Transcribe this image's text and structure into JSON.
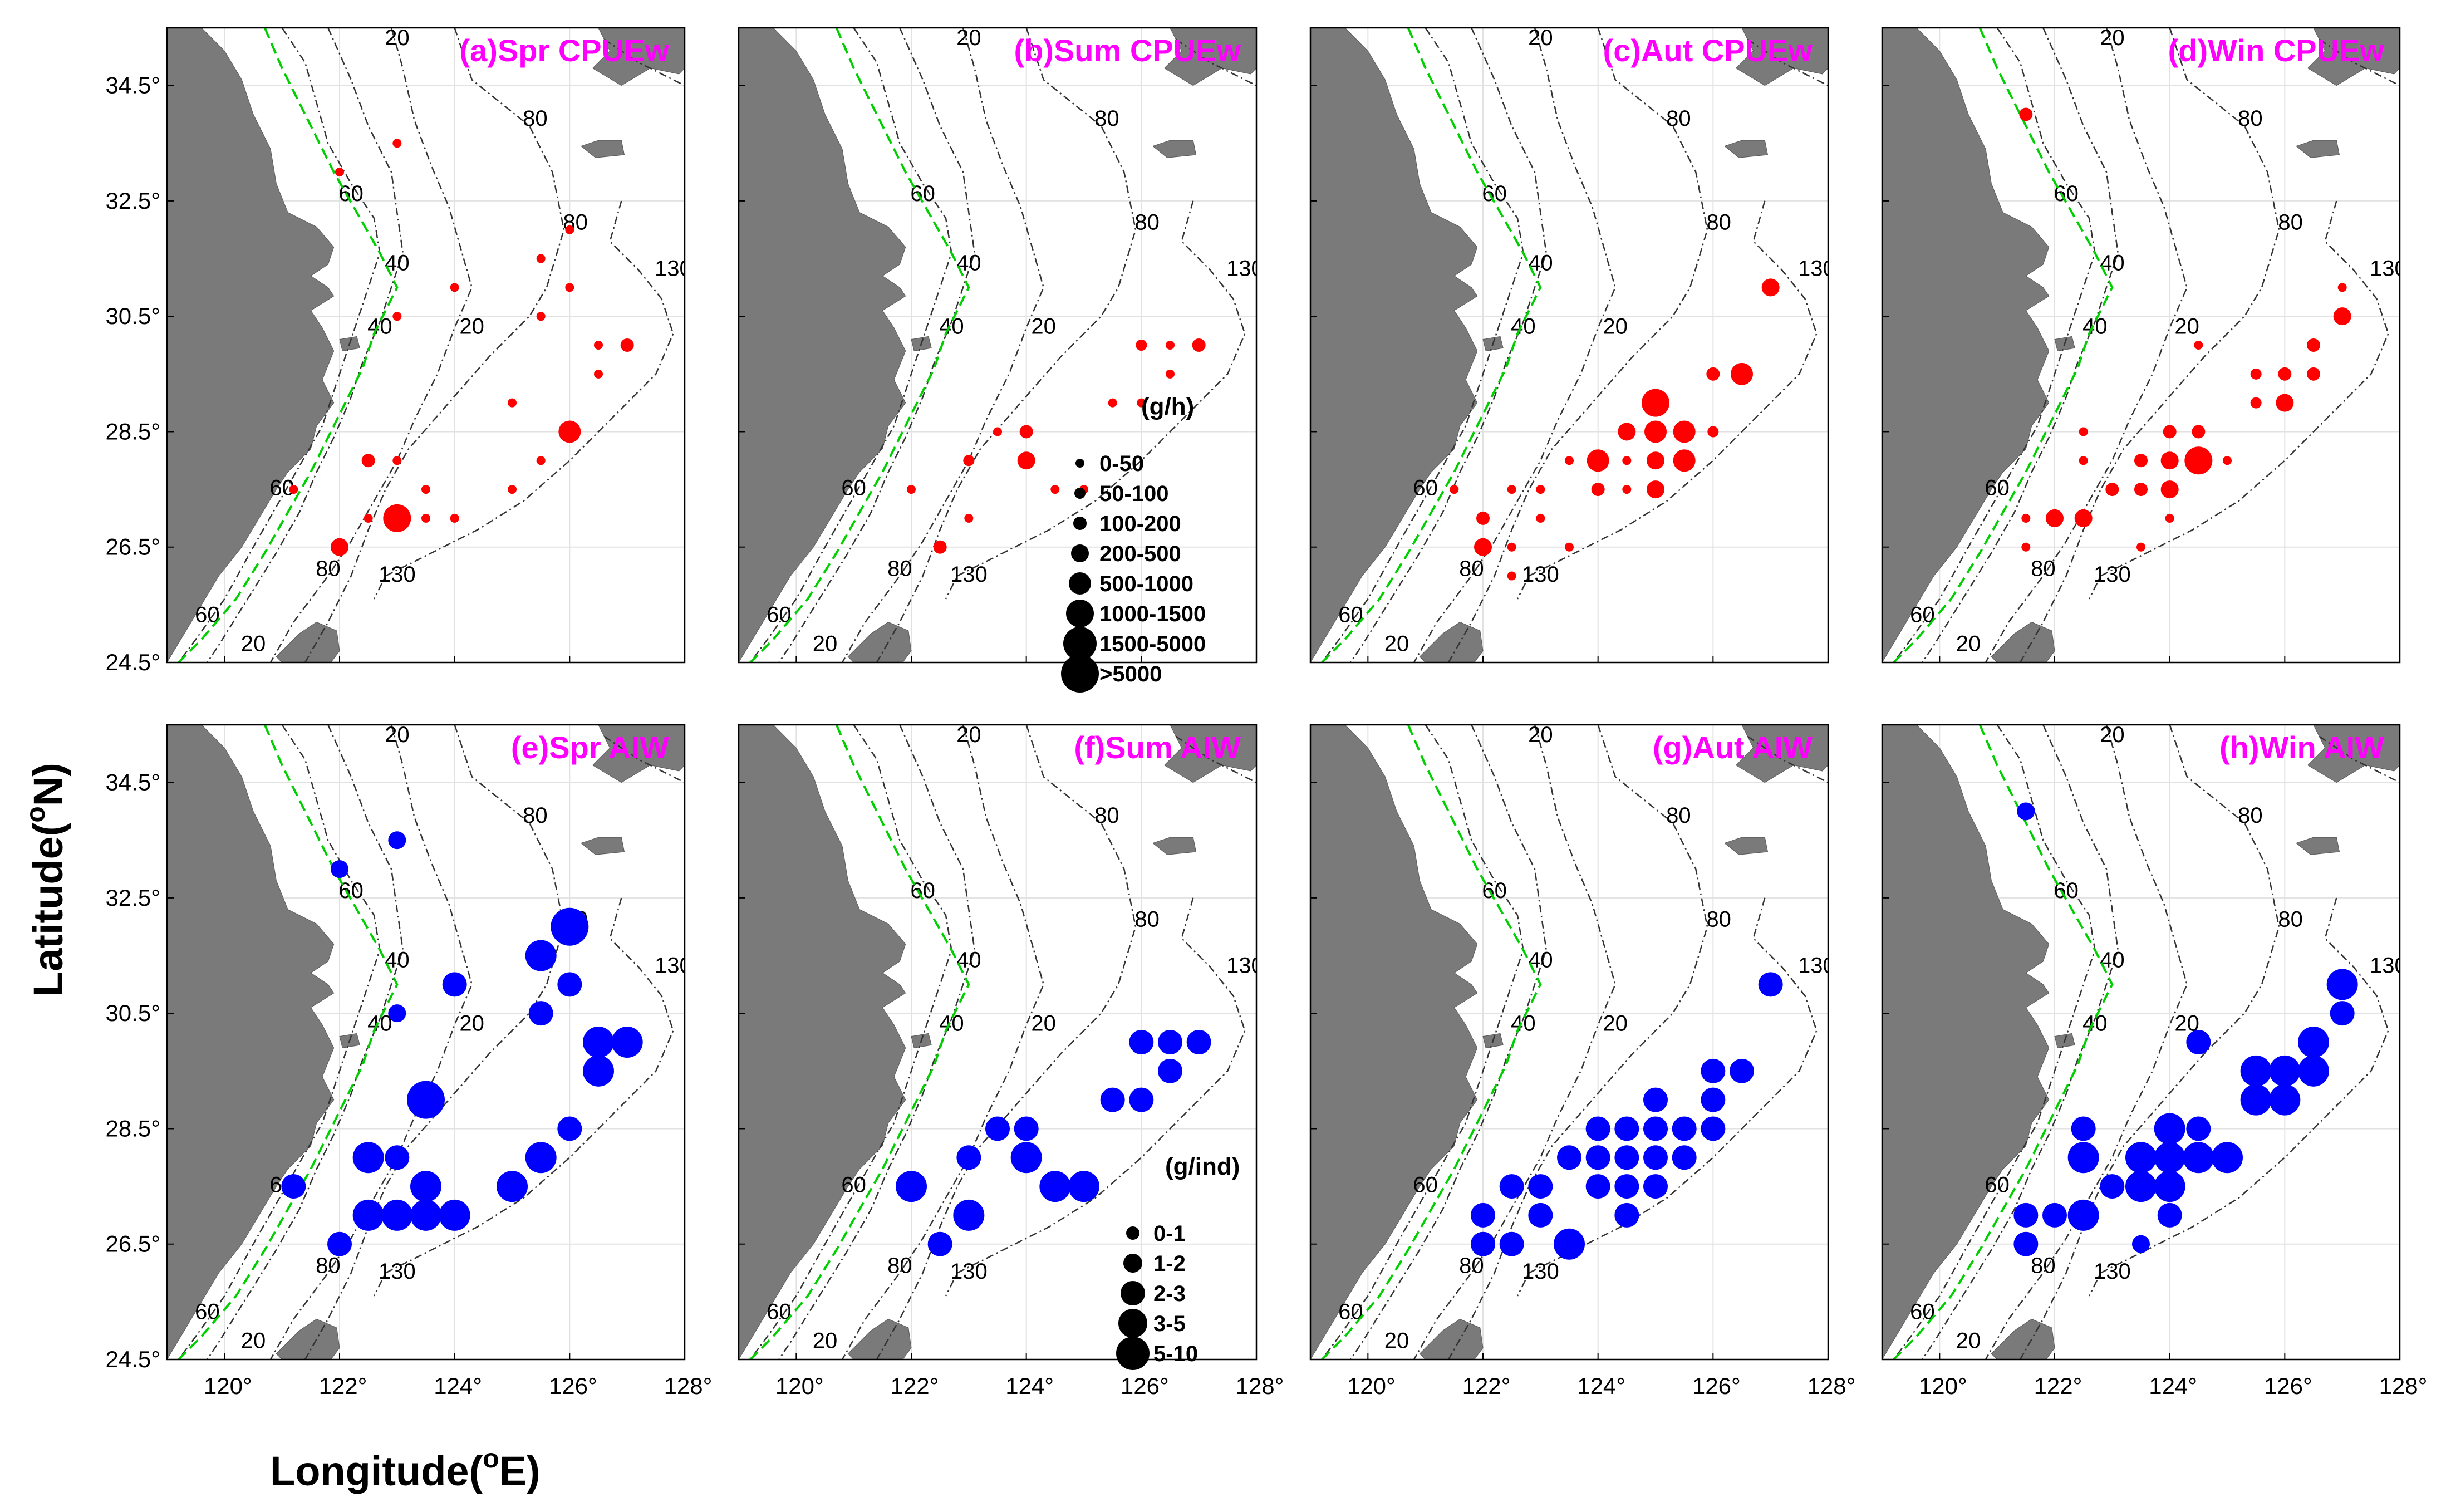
{
  "axes": {
    "xlabel": "Longitude(",
    "xlabel_sup": "o",
    "xlabel_end": "E)",
    "ylabel": "Latitude(",
    "ylabel_sup": "o",
    "ylabel_end": "N)",
    "x_ticks": [
      "120°",
      "122°",
      "124°",
      "126°",
      "128°"
    ],
    "y_ticks": [
      "34.5°",
      "32.5°",
      "30.5°",
      "28.5°",
      "26.5°",
      "24.5°"
    ],
    "x_tick_values": [
      120,
      122,
      124,
      126,
      128
    ],
    "y_tick_values": [
      34.5,
      32.5,
      30.5,
      28.5,
      26.5,
      24.5
    ],
    "xlim": [
      119,
      128
    ],
    "ylim": [
      24.5,
      35.5
    ]
  },
  "colors": {
    "cpue": "#ff0000",
    "aiw": "#0000ff",
    "land": "#7a7a7a",
    "title": "#ff00ff",
    "boundary": "#00d000"
  },
  "depth_labels": [
    "20",
    "40",
    "60",
    "80",
    "130"
  ],
  "legends": {
    "cpue": {
      "title": "(g/h)",
      "items": [
        "0-50",
        "50-100",
        "100-200",
        "200-500",
        "500-1000",
        "1000-1500",
        "1500-5000",
        ">5000"
      ]
    },
    "aiw": {
      "title": "(g/ind)",
      "items": [
        "0-1",
        "1-2",
        "2-3",
        "3-5",
        "5-10"
      ]
    }
  },
  "chart_data": [
    {
      "type": "scatter",
      "title": "(a)Spr CPUEw",
      "series": "CPUEw (g/h)",
      "points": [
        [
          122,
          33
        ],
        [
          123,
          33.5
        ],
        [
          126,
          32
        ],
        [
          125.5,
          31.5
        ],
        [
          124,
          31
        ],
        [
          126,
          31
        ],
        [
          123,
          30.5
        ],
        [
          125.5,
          30.5
        ],
        [
          126.5,
          30
        ],
        [
          127,
          30
        ],
        [
          126.5,
          29.5
        ],
        [
          125,
          29
        ],
        [
          126,
          28.5
        ],
        [
          122.5,
          28
        ],
        [
          123,
          28
        ],
        [
          125.5,
          28
        ],
        [
          123.5,
          27.5
        ],
        [
          125,
          27.5
        ],
        [
          121.2,
          27.5
        ],
        [
          122.5,
          27
        ],
        [
          123,
          27
        ],
        [
          123.5,
          27
        ],
        [
          124,
          27
        ],
        [
          122,
          26.5
        ]
      ],
      "classes": [
        1,
        1,
        1,
        1,
        1,
        1,
        1,
        1,
        1,
        3,
        1,
        1,
        5,
        3,
        1,
        1,
        1,
        1,
        1,
        1,
        6,
        1,
        1,
        4
      ]
    },
    {
      "type": "scatter",
      "title": "(b)Sum CPUEw",
      "series": "CPUEw (g/h)",
      "points": [
        [
          126,
          30
        ],
        [
          126.5,
          30
        ],
        [
          127,
          30
        ],
        [
          126.5,
          29.5
        ],
        [
          125.5,
          29
        ],
        [
          126,
          29
        ],
        [
          123.5,
          28.5
        ],
        [
          124,
          28.5
        ],
        [
          123,
          28
        ],
        [
          124,
          28
        ],
        [
          122,
          27.5
        ],
        [
          124.5,
          27.5
        ],
        [
          125,
          27.5
        ],
        [
          123,
          27
        ],
        [
          122.5,
          26.5
        ]
      ],
      "classes": [
        2,
        1,
        3,
        1,
        1,
        1,
        1,
        3,
        2,
        4,
        1,
        1,
        1,
        1,
        3
      ]
    },
    {
      "type": "scatter",
      "title": "(c)Aut CPUEw",
      "series": "CPUEw (g/h)",
      "points": [
        [
          127,
          31
        ],
        [
          126,
          29.5
        ],
        [
          126.5,
          29.5
        ],
        [
          125,
          29
        ],
        [
          124.5,
          28.5
        ],
        [
          125,
          28.5
        ],
        [
          125.5,
          28.5
        ],
        [
          126,
          28.5
        ],
        [
          123.5,
          28
        ],
        [
          124,
          28
        ],
        [
          124.5,
          28
        ],
        [
          125,
          28
        ],
        [
          125.5,
          28
        ],
        [
          122.5,
          27.5
        ],
        [
          123,
          27.5
        ],
        [
          124,
          27.5
        ],
        [
          124.5,
          27.5
        ],
        [
          125,
          27.5
        ],
        [
          122,
          27
        ],
        [
          123,
          27
        ],
        [
          122,
          26.5
        ],
        [
          122.5,
          26.5
        ],
        [
          123.5,
          26.5
        ],
        [
          122.5,
          26
        ],
        [
          121.5,
          27.5
        ]
      ],
      "classes": [
        4,
        3,
        5,
        6,
        4,
        5,
        5,
        2,
        1,
        5,
        1,
        4,
        5,
        1,
        1,
        3,
        1,
        4,
        3,
        1,
        4,
        1,
        1,
        1,
        1
      ]
    },
    {
      "type": "scatter",
      "title": "(d)Win CPUEw",
      "series": "CPUEw (g/h)",
      "points": [
        [
          121.5,
          34
        ],
        [
          127,
          31
        ],
        [
          127,
          30.5
        ],
        [
          124.5,
          30
        ],
        [
          126.5,
          30
        ],
        [
          125.5,
          29.5
        ],
        [
          126,
          29.5
        ],
        [
          126.5,
          29.5
        ],
        [
          125.5,
          29
        ],
        [
          126,
          29
        ],
        [
          122.5,
          28.5
        ],
        [
          124,
          28.5
        ],
        [
          124.5,
          28.5
        ],
        [
          122.5,
          28
        ],
        [
          123.5,
          28
        ],
        [
          124,
          28
        ],
        [
          124.5,
          28
        ],
        [
          125,
          28
        ],
        [
          123,
          27.5
        ],
        [
          123.5,
          27.5
        ],
        [
          124,
          27.5
        ],
        [
          122,
          27
        ],
        [
          122.5,
          27
        ],
        [
          121.5,
          27
        ],
        [
          121.5,
          26.5
        ],
        [
          123.5,
          26.5
        ],
        [
          124,
          27
        ]
      ],
      "classes": [
        3,
        1,
        4,
        1,
        3,
        2,
        3,
        3,
        2,
        4,
        1,
        3,
        3,
        1,
        3,
        4,
        6,
        1,
        3,
        3,
        4,
        4,
        4,
        1,
        1,
        1,
        1
      ]
    },
    {
      "type": "scatter",
      "title": "(e)Spr AIW",
      "series": "AIW (g/ind)",
      "points": [
        [
          122,
          33
        ],
        [
          123,
          33.5
        ],
        [
          126,
          32
        ],
        [
          125.5,
          31.5
        ],
        [
          124,
          31
        ],
        [
          126,
          31
        ],
        [
          123,
          30.5
        ],
        [
          125.5,
          30.5
        ],
        [
          126.5,
          30
        ],
        [
          127,
          30
        ],
        [
          126.5,
          29.5
        ],
        [
          123.5,
          29
        ],
        [
          126,
          28.5
        ],
        [
          122.5,
          28
        ],
        [
          123,
          28
        ],
        [
          125.5,
          28
        ],
        [
          123.5,
          27.5
        ],
        [
          125,
          27.5
        ],
        [
          121.2,
          27.5
        ],
        [
          122.5,
          27
        ],
        [
          123,
          27
        ],
        [
          123.5,
          27
        ],
        [
          124,
          27
        ],
        [
          122,
          26.5
        ]
      ],
      "classes": [
        2,
        2,
        5,
        4,
        3,
        3,
        2,
        3,
        4,
        4,
        4,
        5,
        3,
        4,
        3,
        4,
        4,
        4,
        3,
        4,
        4,
        4,
        4,
        3
      ]
    },
    {
      "type": "scatter",
      "title": "(f)Sum AIW",
      "series": "AIW (g/ind)",
      "points": [
        [
          126,
          30
        ],
        [
          126.5,
          30
        ],
        [
          127,
          30
        ],
        [
          126.5,
          29.5
        ],
        [
          125.5,
          29
        ],
        [
          126,
          29
        ],
        [
          123.5,
          28.5
        ],
        [
          124,
          28.5
        ],
        [
          123,
          28
        ],
        [
          124,
          28
        ],
        [
          122,
          27.5
        ],
        [
          124.5,
          27.5
        ],
        [
          125,
          27.5
        ],
        [
          123,
          27
        ],
        [
          122.5,
          26.5
        ]
      ],
      "classes": [
        3,
        3,
        3,
        3,
        3,
        3,
        3,
        3,
        3,
        4,
        4,
        4,
        4,
        4,
        3
      ]
    },
    {
      "type": "scatter",
      "title": "(g)Aut AIW",
      "series": "AIW (g/ind)",
      "points": [
        [
          127,
          31
        ],
        [
          126,
          29.5
        ],
        [
          126.5,
          29.5
        ],
        [
          125,
          29
        ],
        [
          126,
          29
        ],
        [
          124,
          28.5
        ],
        [
          124.5,
          28.5
        ],
        [
          125,
          28.5
        ],
        [
          125.5,
          28.5
        ],
        [
          126,
          28.5
        ],
        [
          123.5,
          28
        ],
        [
          124,
          28
        ],
        [
          124.5,
          28
        ],
        [
          125,
          28
        ],
        [
          125.5,
          28
        ],
        [
          122.5,
          27.5
        ],
        [
          123,
          27.5
        ],
        [
          124,
          27.5
        ],
        [
          124.5,
          27.5
        ],
        [
          125,
          27.5
        ],
        [
          122,
          27
        ],
        [
          123,
          27
        ],
        [
          124.5,
          27
        ],
        [
          122,
          26.5
        ],
        [
          122.5,
          26.5
        ],
        [
          123.5,
          26.5
        ]
      ],
      "classes": [
        3,
        3,
        3,
        3,
        3,
        3,
        3,
        3,
        3,
        3,
        3,
        3,
        3,
        3,
        3,
        3,
        3,
        3,
        3,
        3,
        3,
        3,
        3,
        3,
        3,
        4
      ]
    },
    {
      "type": "scatter",
      "title": "(h)Win AIW",
      "series": "AIW (g/ind)",
      "points": [
        [
          121.5,
          34
        ],
        [
          127,
          31
        ],
        [
          127,
          30.5
        ],
        [
          124.5,
          30
        ],
        [
          126.5,
          30
        ],
        [
          125.5,
          29.5
        ],
        [
          126,
          29.5
        ],
        [
          126.5,
          29.5
        ],
        [
          125.5,
          29
        ],
        [
          126,
          29
        ],
        [
          122.5,
          28.5
        ],
        [
          124,
          28.5
        ],
        [
          124.5,
          28.5
        ],
        [
          122.5,
          28
        ],
        [
          123.5,
          28
        ],
        [
          124,
          28
        ],
        [
          124.5,
          28
        ],
        [
          125,
          28
        ],
        [
          123,
          27.5
        ],
        [
          123.5,
          27.5
        ],
        [
          124,
          27.5
        ],
        [
          121.5,
          27
        ],
        [
          122,
          27
        ],
        [
          122.5,
          27
        ],
        [
          124,
          27
        ],
        [
          121.5,
          26.5
        ],
        [
          123.5,
          26.5
        ]
      ],
      "classes": [
        2,
        4,
        3,
        3,
        4,
        4,
        4,
        4,
        4,
        4,
        3,
        4,
        3,
        4,
        4,
        4,
        4,
        4,
        3,
        4,
        4,
        3,
        3,
        4,
        3,
        3,
        2
      ]
    }
  ]
}
